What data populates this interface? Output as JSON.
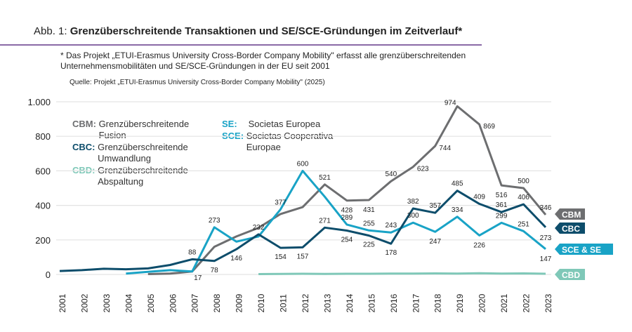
{
  "header": {
    "prefix": "Abb. 1:",
    "title": "Grenzüberschreitende Transaktionen und SE/SCE-Gründungen im Zeitverlauf*"
  },
  "footnote": "* Das Projekt „ETUI-Erasmus University Cross-Border Company Mobility\" erfasst alle grenzüberschreitenden Unternehmensmobilitäten und SE/SCE-Gründungen in der EU seit 2001",
  "source": "Quelle: Projekt „ETUI-Erasmus University Cross-Border Company Mobility\" (2025)",
  "legend": [
    {
      "abbr": "CBM:",
      "text": "Grenzüberschreitende Fusion",
      "color": "#6d6e70"
    },
    {
      "abbr": "CBC:",
      "text": "Grenzüberschreitende Umwandlung",
      "color": "#0d4d6b"
    },
    {
      "abbr": "CBD:",
      "text": "Grenzüberschreitende Abspaltung",
      "color": "#7fc8b8"
    },
    {
      "abbr": "SE:",
      "text": "Societas Europea",
      "color": "#19a3c6"
    },
    {
      "abbr": "SCE:",
      "text": "Societas Cooperativa Europae",
      "color": "#19a3c6"
    }
  ],
  "chart_data": {
    "type": "line",
    "title": "Grenzüberschreitende Transaktionen und SE/SCE-Gründungen im Zeitverlauf*",
    "x": [
      2001,
      2002,
      2003,
      2004,
      2005,
      2006,
      2007,
      2008,
      2009,
      2010,
      2011,
      2012,
      2013,
      2014,
      2015,
      2016,
      2017,
      2018,
      2019,
      2020,
      2021,
      2022,
      2023
    ],
    "ylim": [
      0,
      1000
    ],
    "yticks": [
      0,
      200,
      400,
      600,
      800,
      1000
    ],
    "ytick_labels": [
      "0",
      "200",
      "400",
      "600",
      "800",
      "1.000"
    ],
    "grid": true,
    "series": [
      {
        "name": "CBM",
        "color": "#6d6e70",
        "values": [
          null,
          null,
          null,
          null,
          2,
          5,
          17,
          160,
          220,
          270,
          350,
          390,
          521,
          428,
          431,
          540,
          623,
          744,
          974,
          869,
          516,
          500,
          346
        ],
        "labels": {
          "2007": "17",
          "2013": "521",
          "2014": "428",
          "2015": "431",
          "2016": "540",
          "2017": "623",
          "2018": "744",
          "2019": "974",
          "2020": "869",
          "2021": "516",
          "2022": "500",
          "2023": "346"
        }
      },
      {
        "name": "CBC",
        "color": "#0d4d6b",
        "values": [
          20,
          25,
          33,
          30,
          35,
          55,
          88,
          78,
          146,
          232,
          154,
          157,
          271,
          254,
          225,
          178,
          382,
          357,
          485,
          409,
          361,
          406,
          273
        ],
        "labels": {
          "2007": "88",
          "2008": "78",
          "2009": "146",
          "2010": "232",
          "2011": "154",
          "2012": "157",
          "2013": "271",
          "2014": "254",
          "2015": "225",
          "2016": "178",
          "2017": "382",
          "2018": "357",
          "2019": "485",
          "2020": "409",
          "2021": "361",
          "2022": "406",
          "2023": "273"
        }
      },
      {
        "name": "SCE & SE",
        "color": "#19a3c6",
        "values": [
          null,
          null,
          null,
          5,
          15,
          25,
          17,
          273,
          190,
          220,
          377,
          600,
          450,
          289,
          255,
          243,
          300,
          247,
          334,
          226,
          299,
          251,
          147
        ],
        "labels": {
          "2008": "273",
          "2011": "377",
          "2012": "600",
          "2014": "289",
          "2015": "255",
          "2016": "243",
          "2017": "300",
          "2018": "247",
          "2019": "334",
          "2020": "226",
          "2021": "299",
          "2022": "251",
          "2023": "147"
        }
      },
      {
        "name": "CBD",
        "color": "#7fc8b8",
        "values": [
          null,
          null,
          null,
          null,
          null,
          null,
          null,
          null,
          null,
          2,
          3,
          4,
          3,
          4,
          4,
          5,
          5,
          6,
          5,
          7,
          5,
          6,
          4
        ],
        "labels": {}
      }
    ]
  }
}
